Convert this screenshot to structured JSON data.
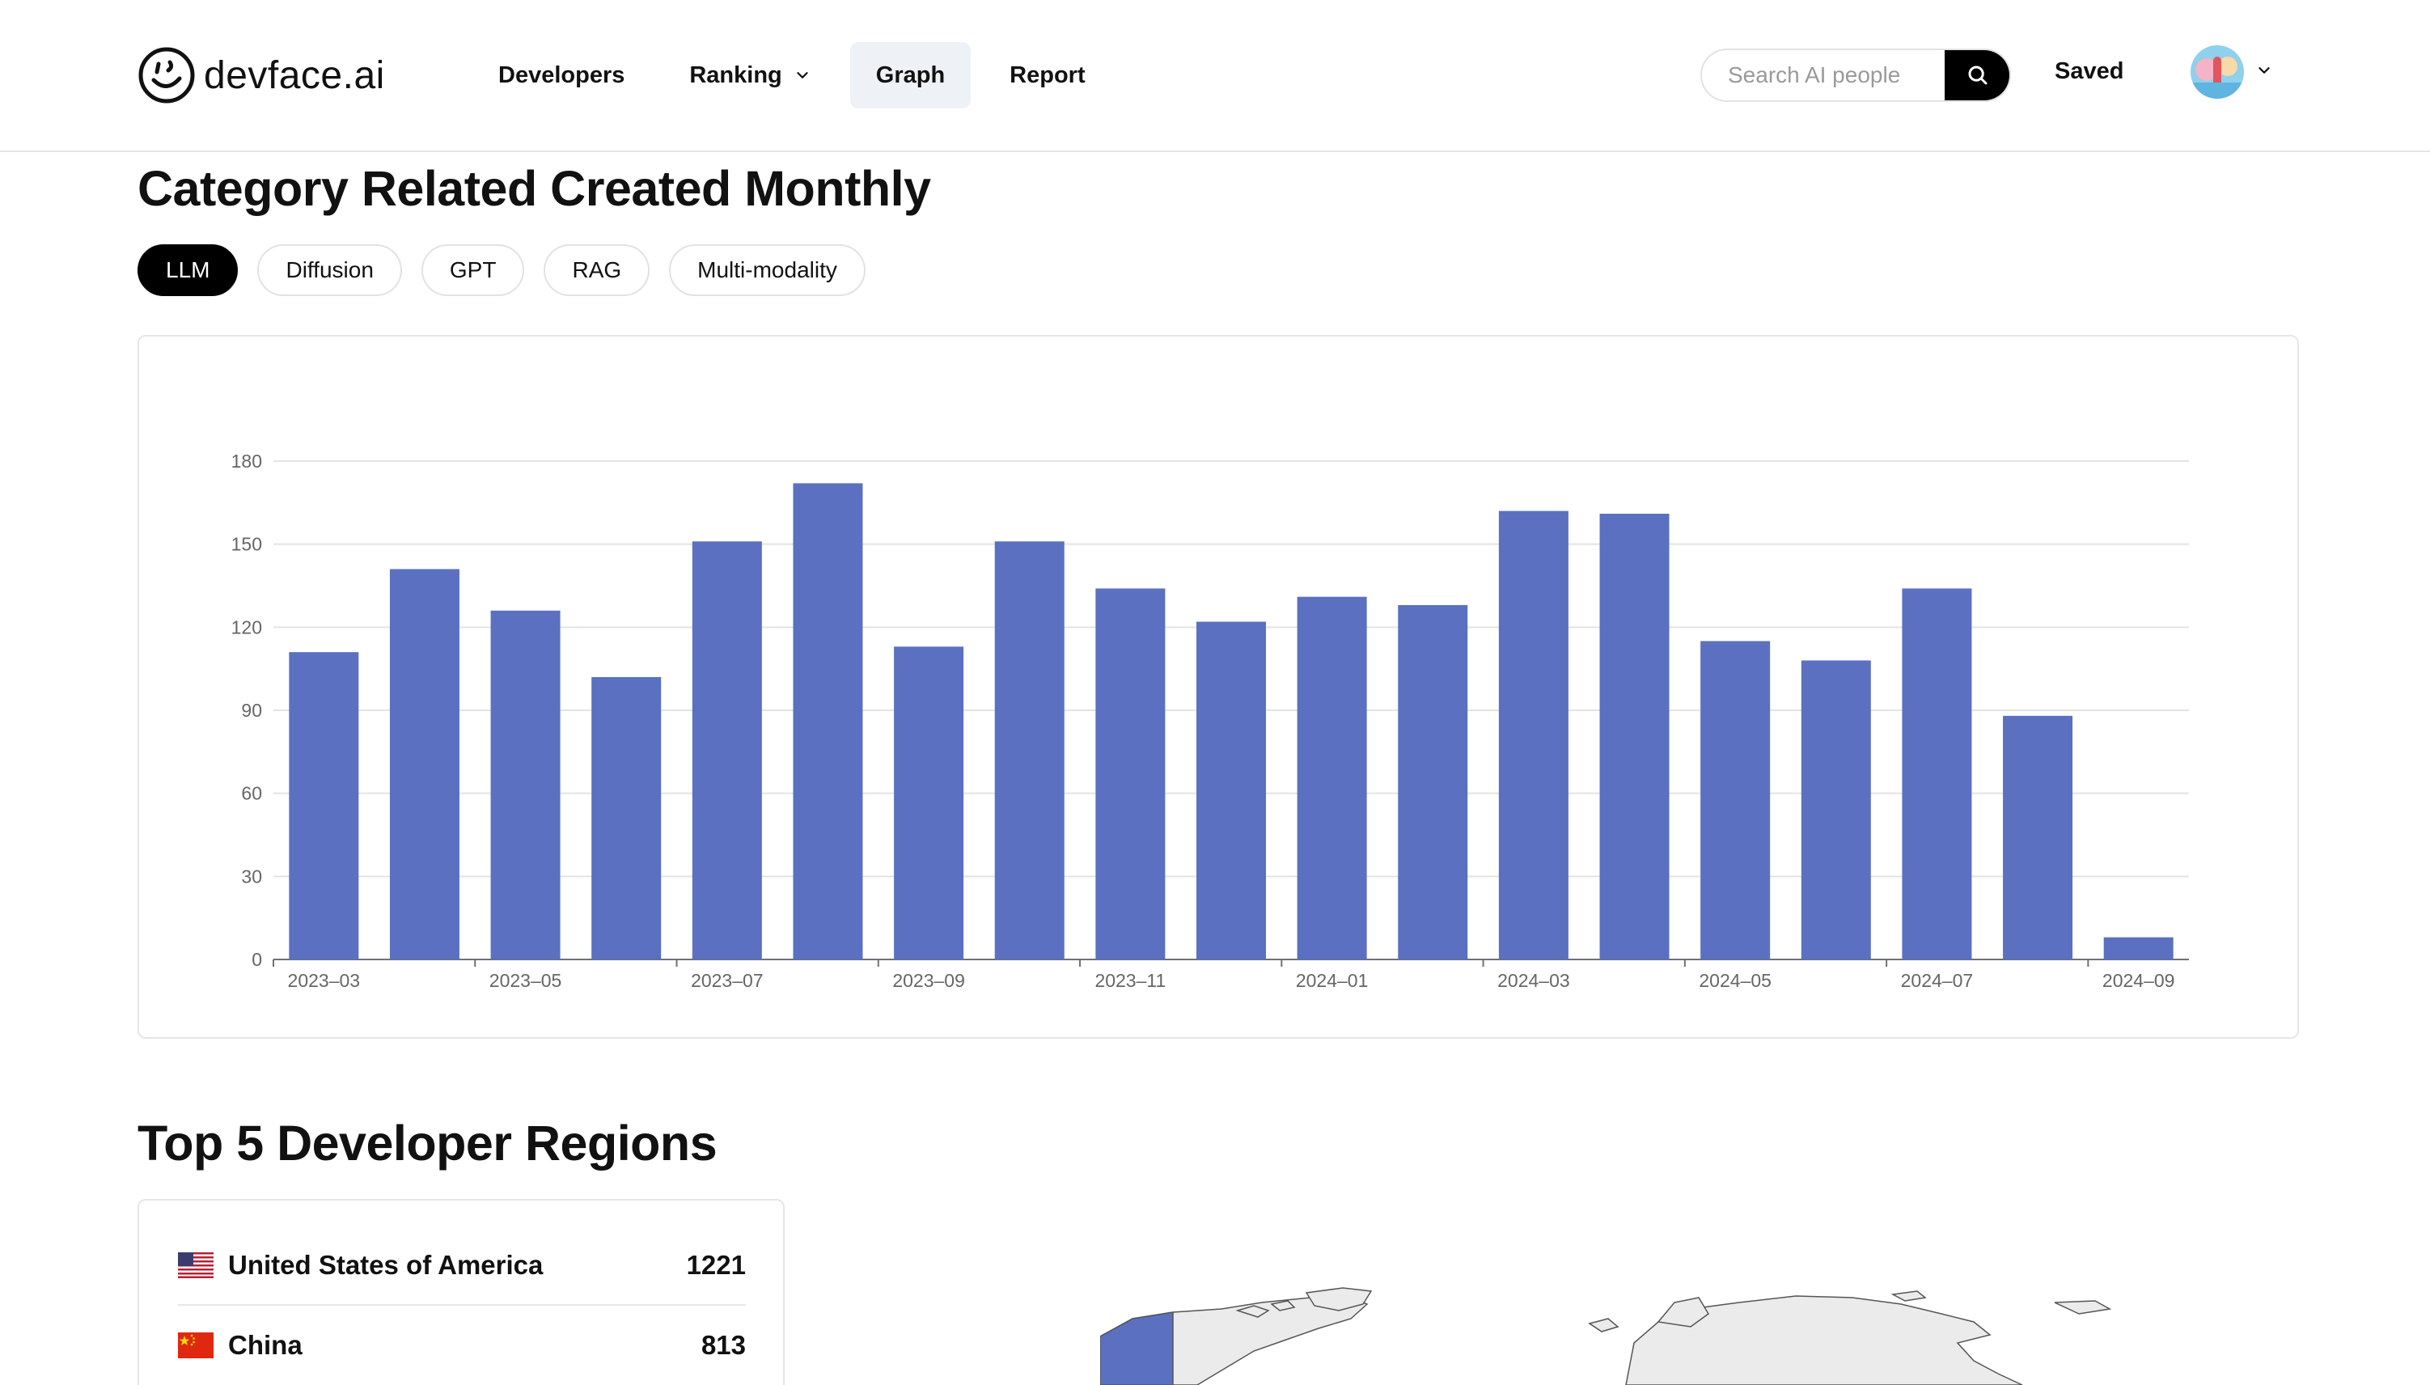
{
  "brand": {
    "name": "devface.ai"
  },
  "nav": {
    "developers": "Developers",
    "ranking": "Ranking",
    "graph": "Graph",
    "report": "Report"
  },
  "search": {
    "placeholder": "Search AI people"
  },
  "saved_label": "Saved",
  "section_monthly": {
    "title": "Category Related Created Monthly",
    "tabs": [
      "LLM",
      "Diffusion",
      "GPT",
      "RAG",
      "Multi-modality"
    ],
    "active_tab": "LLM"
  },
  "chart_data": {
    "type": "bar",
    "categories": [
      "2023-03",
      "2023-04",
      "2023-05",
      "2023-06",
      "2023-07",
      "2023-08",
      "2023-09",
      "2023-10",
      "2023-11",
      "2023-12",
      "2024-01",
      "2024-02",
      "2024-03",
      "2024-04",
      "2024-05",
      "2024-06",
      "2024-07",
      "2024-08",
      "2024-09"
    ],
    "x_tick_labels": [
      "2023–03",
      "2023–05",
      "2023–07",
      "2023–09",
      "2023–11",
      "2024–01",
      "2024–03",
      "2024–05",
      "2024–07",
      "2024–09"
    ],
    "values": [
      111,
      141,
      126,
      102,
      151,
      172,
      113,
      151,
      134,
      122,
      131,
      128,
      162,
      161,
      115,
      108,
      134,
      88,
      8
    ],
    "y_ticks": [
      0,
      30,
      60,
      90,
      120,
      150,
      180
    ],
    "ylim": [
      0,
      180
    ],
    "grid": true,
    "bar_color": "#5b70c0"
  },
  "section_regions": {
    "title": "Top 5 Developer Regions",
    "regions": [
      {
        "name": "United States of America",
        "count": "1221",
        "flag": "us"
      },
      {
        "name": "China",
        "count": "813",
        "flag": "cn"
      }
    ]
  },
  "colors": {
    "accent": "#5b70c0",
    "map_land": "#ebebeb",
    "map_highlight": "#5b70c0"
  }
}
